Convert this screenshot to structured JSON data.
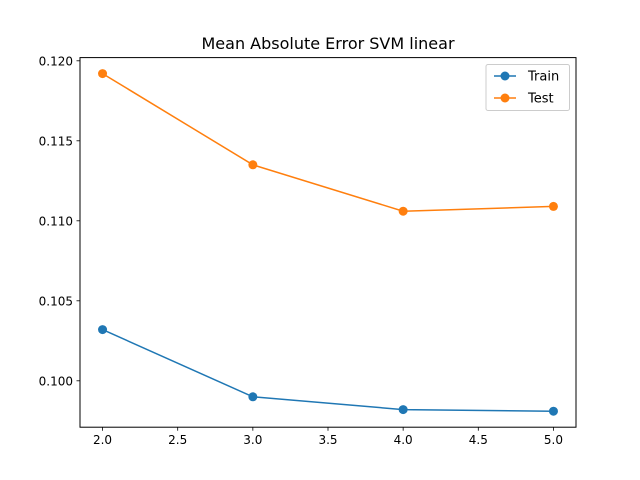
{
  "chart_data": {
    "type": "line",
    "title": "Mean Absolute Error SVM linear",
    "xlabel": "",
    "ylabel": "",
    "x": [
      2.0,
      3.0,
      4.0,
      5.0
    ],
    "series": [
      {
        "name": "Train",
        "values": [
          0.1032,
          0.099,
          0.0982,
          0.0981
        ],
        "color": "#1f77b4"
      },
      {
        "name": "Test",
        "values": [
          0.1192,
          0.1135,
          0.1106,
          0.1109
        ],
        "color": "#ff7f0e"
      }
    ],
    "xlim": [
      1.85,
      5.15
    ],
    "ylim": [
      0.0971,
      0.1202
    ],
    "xticks": [
      "2.0",
      "2.5",
      "3.0",
      "3.5",
      "4.0",
      "4.5",
      "5.0"
    ],
    "yticks": [
      "0.100",
      "0.105",
      "0.110",
      "0.115",
      "0.120"
    ],
    "grid": false,
    "legend_position": "top-right"
  }
}
